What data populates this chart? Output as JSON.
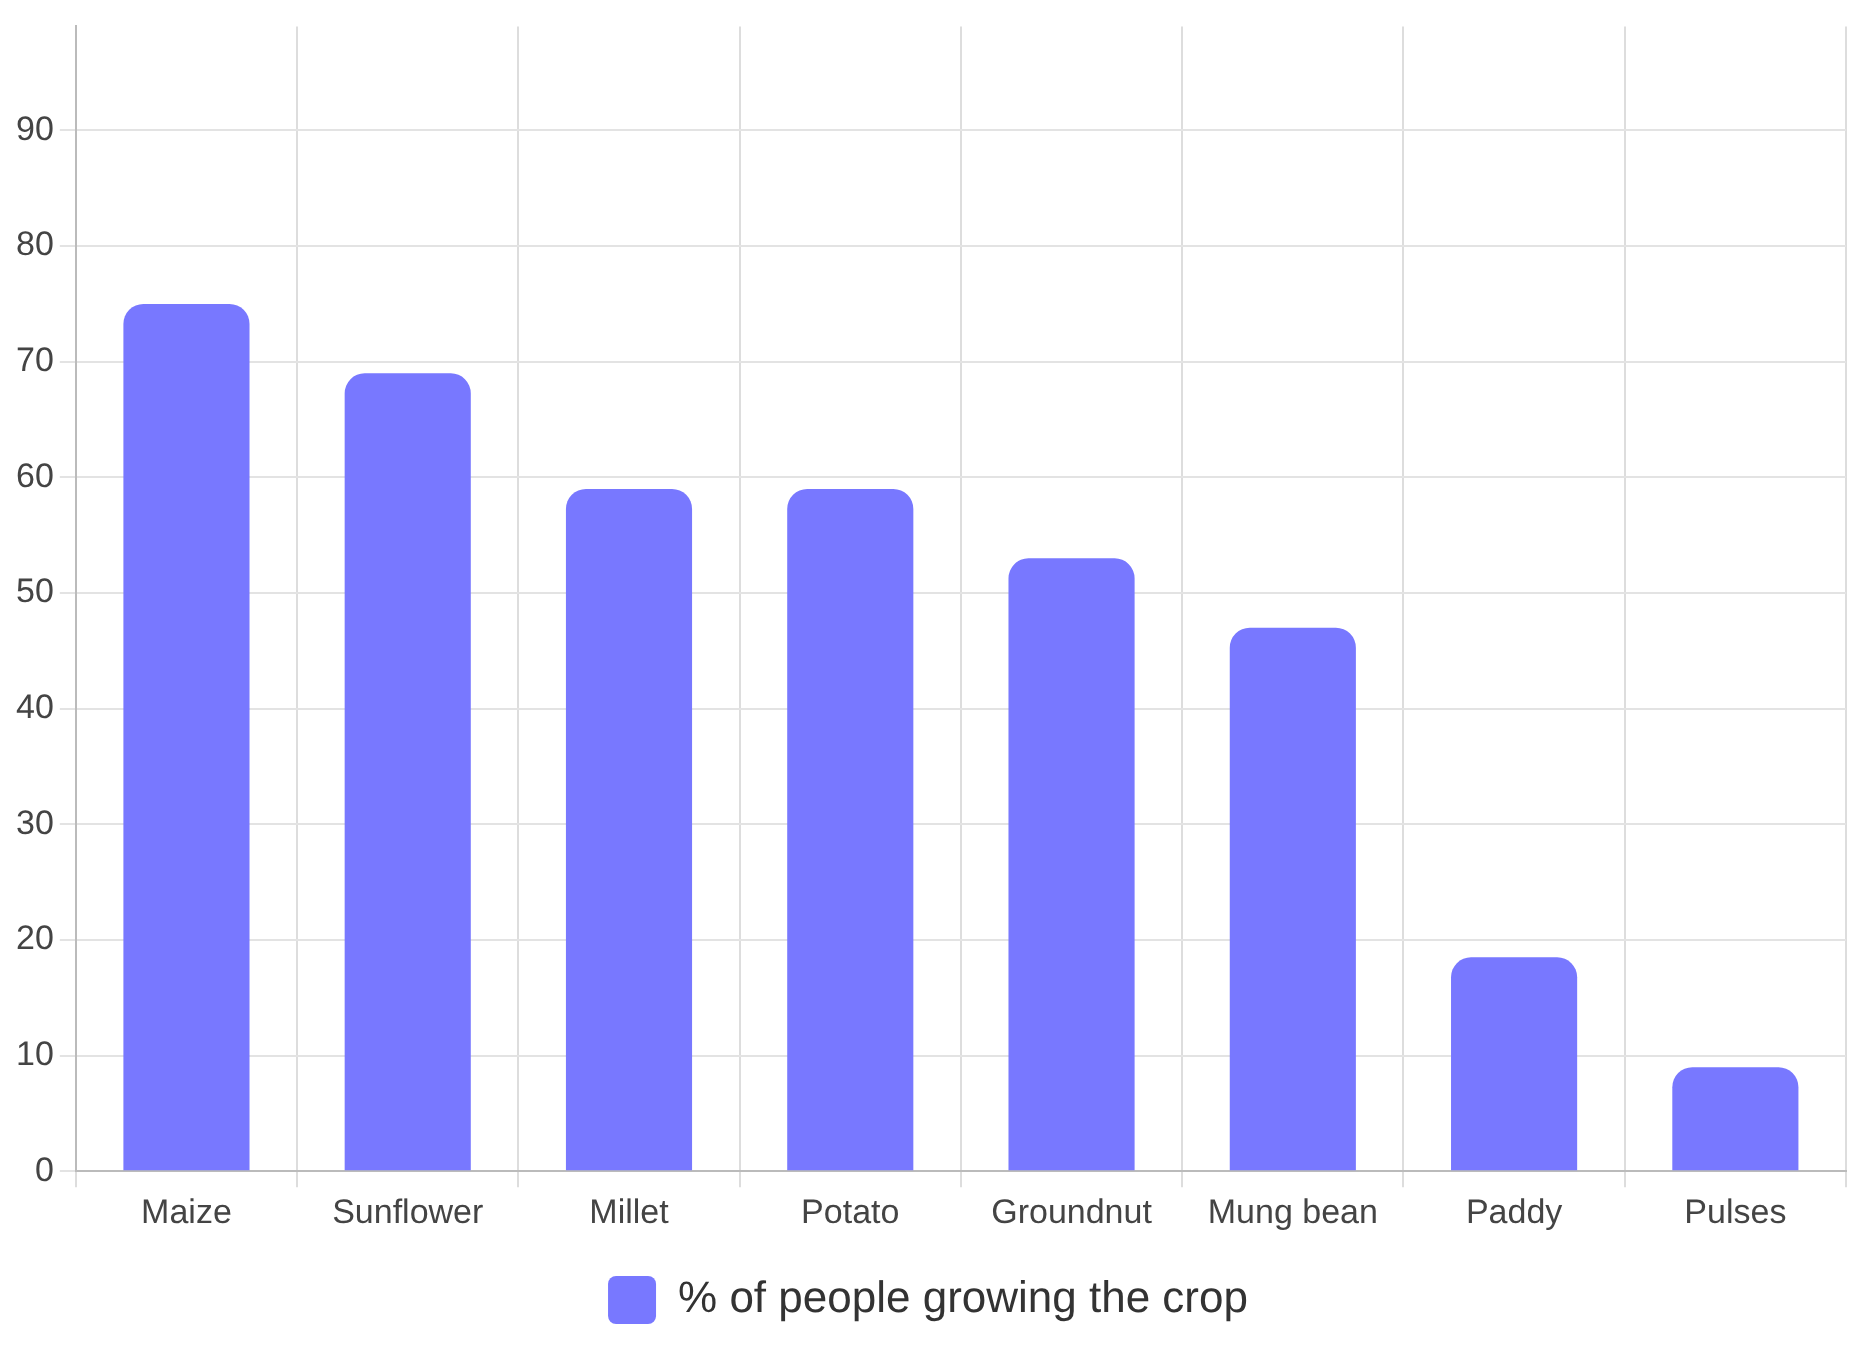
{
  "chart_data": {
    "type": "bar",
    "categories": [
      "Maize",
      "Sunflower",
      "Millet",
      "Potato",
      "Groundnut",
      "Mung bean",
      "Paddy",
      "Pulses"
    ],
    "series": [
      {
        "name": "% of people growing the crop",
        "color": "#7878ff",
        "values": [
          75,
          69,
          59,
          59,
          53,
          47,
          18.5,
          9
        ]
      }
    ],
    "ylim": [
      0,
      99
    ],
    "yticks": [
      0,
      10,
      20,
      30,
      40,
      50,
      60,
      70,
      80,
      90
    ],
    "grid": true,
    "legend": "bottom"
  }
}
